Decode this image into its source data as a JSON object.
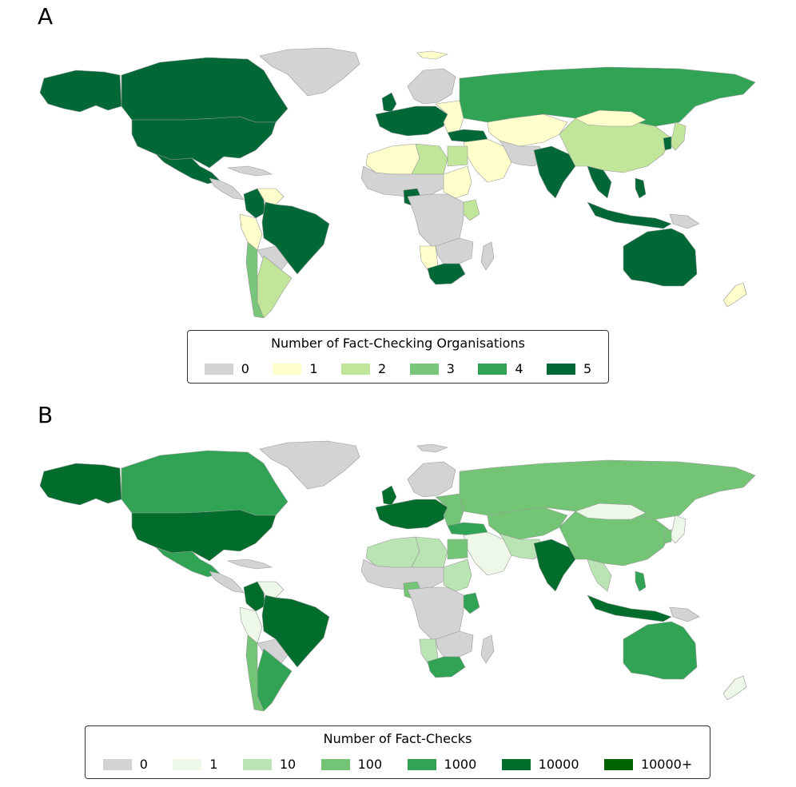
{
  "panels": {
    "a": {
      "label": "A",
      "legend": {
        "title": "Number of Fact-Checking Organisations",
        "items": [
          {
            "label": "0",
            "color": "#d3d3d3"
          },
          {
            "label": "1",
            "color": "#ffffcc"
          },
          {
            "label": "2",
            "color": "#c2e699"
          },
          {
            "label": "3",
            "color": "#78c679"
          },
          {
            "label": "4",
            "color": "#31a354"
          },
          {
            "label": "5",
            "color": "#006837"
          }
        ]
      }
    },
    "b": {
      "label": "B",
      "legend": {
        "title": "Number of Fact-Checks",
        "items": [
          {
            "label": "0",
            "color": "#d3d3d3"
          },
          {
            "label": "1",
            "color": "#edf8e9"
          },
          {
            "label": "10",
            "color": "#bae4b3"
          },
          {
            "label": "100",
            "color": "#74c476"
          },
          {
            "label": "1000",
            "color": "#31a354"
          },
          {
            "label": "10000",
            "color": "#006d2c"
          },
          {
            "label": "10000+",
            "color": "#006400"
          }
        ]
      }
    }
  },
  "map_a_colors": {
    "greenland": "#d3d3d3",
    "alaska": "#006837",
    "canada": "#006837",
    "usa": "#006837",
    "mexico": "#006837",
    "central_america": "#d3d3d3",
    "caribbean": "#d3d3d3",
    "colombia": "#006837",
    "venezuela": "#ffffcc",
    "peru": "#ffffcc",
    "brazil": "#006837",
    "south_rest": "#d3d3d3",
    "argentina": "#c2e699",
    "chile": "#78c679",
    "iceland": "#ffffcc",
    "scandinavia": "#d3d3d3",
    "uk": "#006837",
    "west_europe": "#006837",
    "east_europe": "#ffffcc",
    "turkey": "#006837",
    "russia": "#31a354",
    "kazakhstan_central": "#ffffcc",
    "middle_east": "#ffffcc",
    "iran_afg": "#d3d3d3",
    "india": "#006837",
    "china": "#c2e699",
    "mongolia": "#ffffcc",
    "japan": "#c2e699",
    "korea": "#006837",
    "sea_mainland": "#006837",
    "indonesia": "#006837",
    "philippines": "#006837",
    "png": "#d3d3d3",
    "australia": "#006837",
    "nz": "#ffffcc",
    "north_africa_w": "#ffffcc",
    "north_africa_e": "#c2e699",
    "sahel": "#d3d3d3",
    "nigeria": "#006837",
    "sudan": "#ffffcc",
    "kenya": "#c2e699",
    "central_africa": "#d3d3d3",
    "southern_africa": "#d3d3d3",
    "namibia": "#ffffcc",
    "south_africa": "#006837",
    "madagascar": "#d3d3d3",
    "egypt": "#c2e699"
  },
  "map_b_colors": {
    "greenland": "#d3d3d3",
    "alaska": "#006d2c",
    "canada": "#31a354",
    "usa": "#006d2c",
    "mexico": "#31a354",
    "central_america": "#d3d3d3",
    "caribbean": "#d3d3d3",
    "colombia": "#006d2c",
    "venezuela": "#edf8e9",
    "peru": "#edf8e9",
    "brazil": "#006d2c",
    "south_rest": "#d3d3d3",
    "argentina": "#31a354",
    "chile": "#74c476",
    "iceland": "#d3d3d3",
    "scandinavia": "#d3d3d3",
    "uk": "#006d2c",
    "west_europe": "#006d2c",
    "east_europe": "#74c476",
    "turkey": "#31a354",
    "russia": "#74c476",
    "kazakhstan_central": "#74c476",
    "middle_east": "#edf8e9",
    "iran_afg": "#bae4b3",
    "india": "#006d2c",
    "china": "#74c476",
    "mongolia": "#edf8e9",
    "japan": "#edf8e9",
    "korea": "#74c476",
    "sea_mainland": "#bae4b3",
    "indonesia": "#006d2c",
    "philippines": "#31a354",
    "png": "#d3d3d3",
    "australia": "#31a354",
    "nz": "#edf8e9",
    "north_africa_w": "#bae4b3",
    "north_africa_e": "#bae4b3",
    "sahel": "#d3d3d3",
    "nigeria": "#74c476",
    "sudan": "#bae4b3",
    "kenya": "#31a354",
    "central_africa": "#d3d3d3",
    "southern_africa": "#d3d3d3",
    "namibia": "#bae4b3",
    "south_africa": "#31a354",
    "madagascar": "#d3d3d3",
    "egypt": "#74c476"
  }
}
